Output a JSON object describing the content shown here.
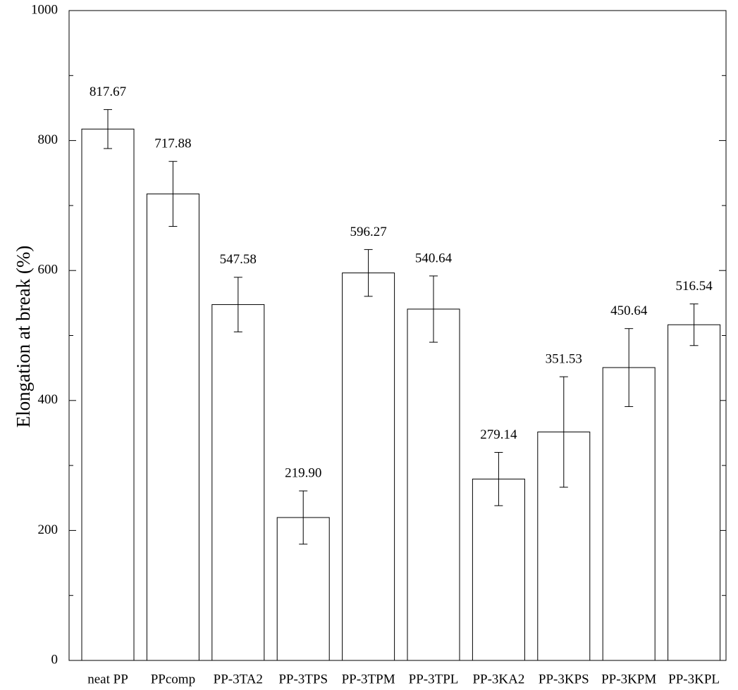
{
  "chart_data": {
    "type": "bar",
    "y_label": "Elongation at break (%)",
    "categories": [
      "neat PP",
      "PPcomp",
      "PP-3TA2",
      "PP-3TPS",
      "PP-3TPM",
      "PP-3TPL",
      "PP-3KA2",
      "PP-3KPS",
      "PP-3KPM",
      "PP-3KPL"
    ],
    "values": [
      817.67,
      717.88,
      547.58,
      219.9,
      596.27,
      540.64,
      279.14,
      351.53,
      450.64,
      516.54
    ],
    "value_labels": [
      "817.67",
      "717.88",
      "547.58",
      "219.90",
      "596.27",
      "540.64",
      "279.14",
      "351.53",
      "450.64",
      "516.54"
    ],
    "errors": [
      30,
      50,
      42,
      41,
      36,
      51,
      41,
      85,
      60,
      32
    ],
    "color": "#ffffff",
    "ylim": [
      0,
      1000
    ],
    "yticks": [
      0,
      200,
      400,
      600,
      800,
      1000
    ],
    "minor_yticks": [
      100,
      300,
      500,
      700,
      900
    ],
    "grid": false
  }
}
